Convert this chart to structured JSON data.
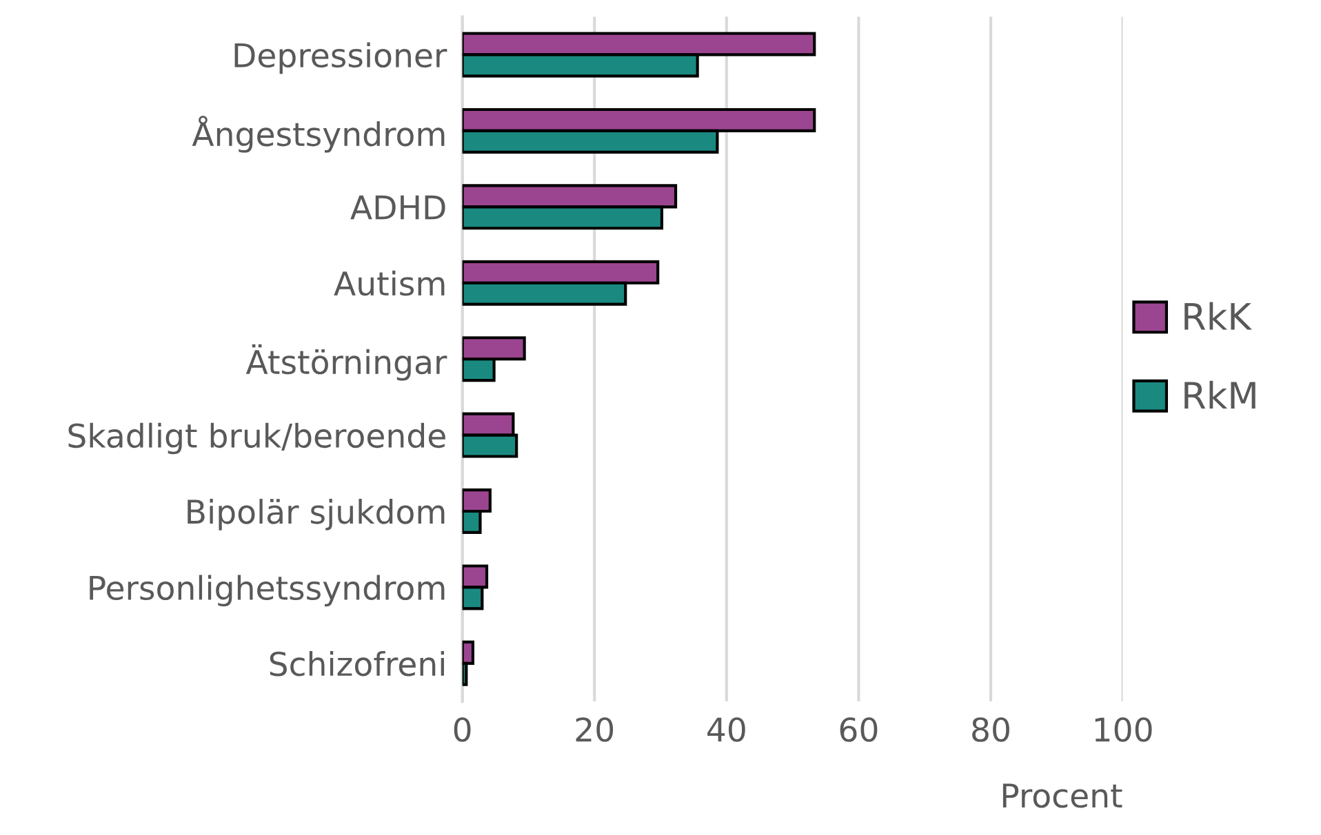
{
  "chart_data": {
    "type": "bar",
    "orientation": "horizontal",
    "xlabel": "Procent",
    "categories": [
      "Depressioner",
      "Ångestsyndrom",
      "ADHD",
      "Autism",
      "Ätstörningar",
      "Skadligt bruk/beroende",
      "Bipolär sjukdom",
      "Personlighetssyndrom",
      "Schizofreni"
    ],
    "series": [
      {
        "name": "RkK",
        "color": "#9b4590",
        "values": [
          53.3,
          53.3,
          32.3,
          29.6,
          9.4,
          7.7,
          4.2,
          3.7,
          1.6
        ]
      },
      {
        "name": "RkM",
        "color": "#1a8a80",
        "values": [
          35.6,
          38.6,
          30.2,
          24.7,
          4.8,
          8.2,
          2.7,
          3.0,
          0.6
        ]
      }
    ],
    "xlim": [
      0,
      100
    ],
    "xticks": [
      0,
      20,
      40,
      60,
      80,
      100
    ],
    "grid": "x",
    "legend": "right"
  }
}
